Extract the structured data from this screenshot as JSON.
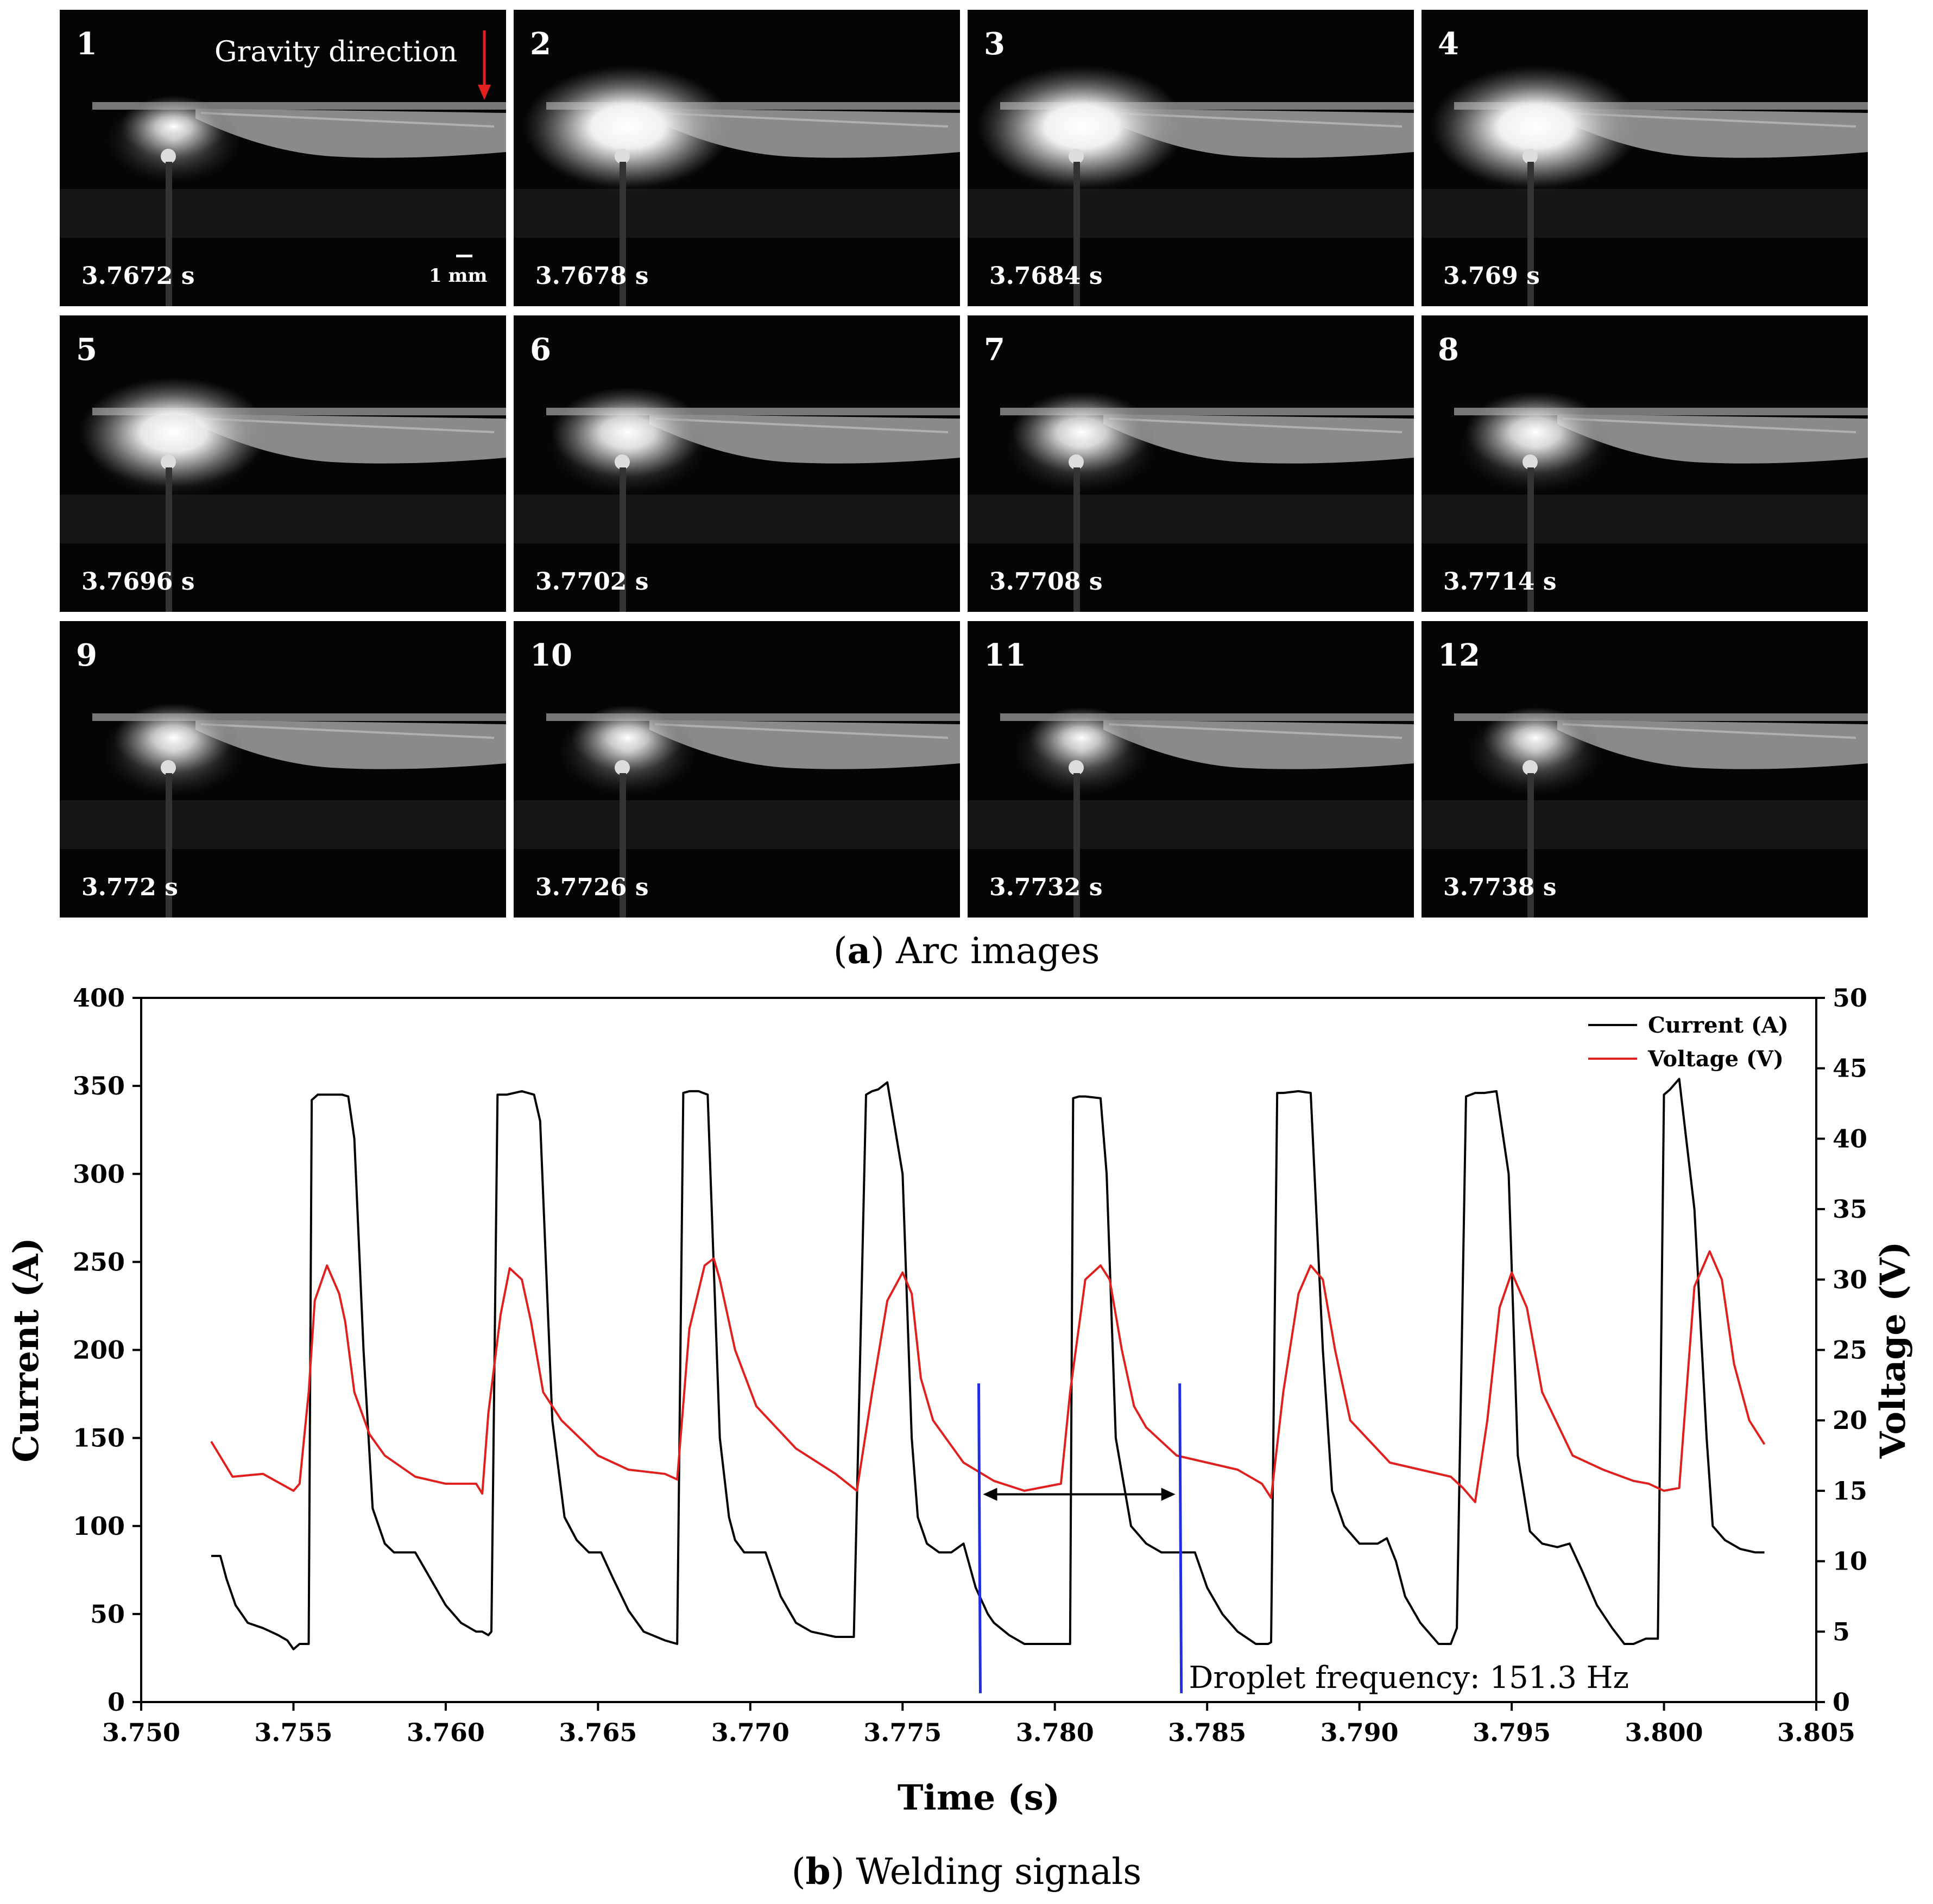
{
  "panel_a": {
    "caption_label": "a",
    "caption_text": "Arc images",
    "gravity_label": "Gravity direction",
    "scale_label": "1 mm",
    "arrow_color": "#e0201e",
    "frames": [
      {
        "num": "1",
        "time": "3.7672 s",
        "glow": 0.25
      },
      {
        "num": "2",
        "time": "3.7678 s",
        "glow": 1.0
      },
      {
        "num": "3",
        "time": "3.7684 s",
        "glow": 1.0
      },
      {
        "num": "4",
        "time": "3.769 s",
        "glow": 1.0
      },
      {
        "num": "5",
        "time": "3.7696 s",
        "glow": 0.85
      },
      {
        "num": "6",
        "time": "3.7702 s",
        "glow": 0.6
      },
      {
        "num": "7",
        "time": "3.7708 s",
        "glow": 0.5
      },
      {
        "num": "8",
        "time": "3.7714 s",
        "glow": 0.5
      },
      {
        "num": "9",
        "time": "3.772 s",
        "glow": 0.35
      },
      {
        "num": "10",
        "time": "3.7726 s",
        "glow": 0.3
      },
      {
        "num": "11",
        "time": "3.7732 s",
        "glow": 0.25
      },
      {
        "num": "12",
        "time": "3.7738 s",
        "glow": 0.25
      }
    ]
  },
  "panel_b": {
    "caption_label": "b",
    "caption_text": "Welding signals"
  },
  "chart_data": {
    "type": "line",
    "xlabel": "Time (s)",
    "ylabel": "Current (A)",
    "y2label": "Voltage (V)",
    "xlim": [
      3.75,
      3.805
    ],
    "ylim": [
      0,
      400
    ],
    "y2lim": [
      0,
      50
    ],
    "xticks": [
      "3.750",
      "3.755",
      "3.760",
      "3.765",
      "3.770",
      "3.775",
      "3.780",
      "3.785",
      "3.790",
      "3.795",
      "3.800",
      "3.805"
    ],
    "xtick_values": [
      3.75,
      3.755,
      3.76,
      3.765,
      3.77,
      3.775,
      3.78,
      3.785,
      3.79,
      3.795,
      3.8,
      3.805
    ],
    "yticks": [
      0,
      50,
      100,
      150,
      200,
      250,
      300,
      350,
      400
    ],
    "y2ticks": [
      0,
      5,
      10,
      15,
      20,
      25,
      30,
      35,
      40,
      45,
      50
    ],
    "annotation": "Droplet frequency: 151.3 Hz",
    "markers": [
      3.7775,
      3.7841
    ],
    "legend_position": "top-right",
    "series": [
      {
        "name": "Current (A)",
        "axis": "left",
        "color": "#000000",
        "x": [
          3.7523,
          3.7526,
          3.7528,
          3.7531,
          3.7535,
          3.754,
          3.7545,
          3.7548,
          3.755,
          3.7552,
          3.7555,
          3.7556,
          3.7558,
          3.756,
          3.7563,
          3.7566,
          3.7568,
          3.757,
          3.7573,
          3.7576,
          3.758,
          3.7583,
          3.7586,
          3.759,
          3.7595,
          3.76,
          3.7605,
          3.761,
          3.7612,
          3.7614,
          3.7615,
          3.7617,
          3.762,
          3.7625,
          3.7629,
          3.7631,
          3.7635,
          3.7639,
          3.7643,
          3.7647,
          3.7651,
          3.7655,
          3.766,
          3.7665,
          3.7672,
          3.7676,
          3.7678,
          3.768,
          3.7683,
          3.7686,
          3.769,
          3.7693,
          3.7695,
          3.7698,
          3.7702,
          3.7705,
          3.771,
          3.7715,
          3.772,
          3.7728,
          3.7734,
          3.7738,
          3.774,
          3.7742,
          3.7745,
          3.775,
          3.7753,
          3.7755,
          3.7758,
          3.7762,
          3.7766,
          3.777,
          3.7774,
          3.7778,
          3.778,
          3.7785,
          3.779,
          3.78,
          3.7805,
          3.7806,
          3.7808,
          3.781,
          3.7815,
          3.7817,
          3.782,
          3.7825,
          3.783,
          3.7835,
          3.784,
          3.7846,
          3.785,
          3.7855,
          3.786,
          3.7866,
          3.787,
          3.7871,
          3.7873,
          3.7875,
          3.788,
          3.7884,
          3.7888,
          3.7891,
          3.7895,
          3.79,
          3.7906,
          3.7909,
          3.7912,
          3.7915,
          3.792,
          3.7926,
          3.793,
          3.7932,
          3.7935,
          3.7938,
          3.7941,
          3.7945,
          3.7949,
          3.7952,
          3.7956,
          3.796,
          3.7965,
          3.7969,
          3.7973,
          3.7978,
          3.7983,
          3.7987,
          3.799,
          3.7994,
          3.7998,
          3.8,
          3.8002,
          3.8005,
          3.801,
          3.8014,
          3.8016,
          3.802,
          3.8025,
          3.803,
          3.8033
        ],
        "values": [
          83,
          83,
          70,
          55,
          45,
          42,
          38,
          35,
          30,
          33,
          33,
          342,
          345,
          345,
          345,
          345,
          344,
          320,
          200,
          110,
          90,
          85,
          85,
          85,
          70,
          55,
          45,
          40,
          40,
          38,
          40,
          345,
          345,
          347,
          345,
          330,
          160,
          105,
          92,
          85,
          85,
          70,
          52,
          40,
          35,
          33,
          346,
          347,
          347,
          345,
          150,
          105,
          92,
          85,
          85,
          85,
          60,
          45,
          40,
          37,
          37,
          345,
          347,
          348,
          352,
          300,
          150,
          105,
          90,
          85,
          85,
          90,
          65,
          50,
          45,
          38,
          33,
          33,
          33,
          343,
          344,
          344,
          343,
          300,
          150,
          100,
          90,
          85,
          85,
          85,
          65,
          50,
          40,
          33,
          33,
          34,
          346,
          346,
          347,
          346,
          200,
          120,
          100,
          90,
          90,
          93,
          80,
          60,
          45,
          33,
          33,
          42,
          344,
          346,
          346,
          347,
          300,
          140,
          97,
          90,
          88,
          90,
          75,
          55,
          42,
          33,
          33,
          36,
          36,
          345,
          348,
          354,
          280,
          150,
          100,
          92,
          87,
          85,
          85
        ]
      },
      {
        "name": "Voltage (V)",
        "axis": "right",
        "color": "#e0201e",
        "x": [
          3.7523,
          3.753,
          3.754,
          3.755,
          3.7552,
          3.7555,
          3.7557,
          3.7561,
          3.7565,
          3.7567,
          3.757,
          3.7575,
          3.758,
          3.759,
          3.76,
          3.761,
          3.7612,
          3.7614,
          3.7618,
          3.7621,
          3.7625,
          3.7628,
          3.7632,
          3.7638,
          3.765,
          3.766,
          3.7672,
          3.7676,
          3.768,
          3.7685,
          3.7688,
          3.769,
          3.7695,
          3.7702,
          3.7715,
          3.7728,
          3.7735,
          3.774,
          3.7745,
          3.775,
          3.7753,
          3.7756,
          3.776,
          3.777,
          3.778,
          3.779,
          3.7802,
          3.7805,
          3.781,
          3.7815,
          3.7818,
          3.7822,
          3.7826,
          3.783,
          3.784,
          3.785,
          3.786,
          3.7868,
          3.7871,
          3.7875,
          3.788,
          3.7884,
          3.7888,
          3.7892,
          3.7897,
          3.791,
          3.792,
          3.793,
          3.7934,
          3.7938,
          3.7942,
          3.7946,
          3.795,
          3.7955,
          3.796,
          3.797,
          3.798,
          3.799,
          3.7995,
          3.8,
          3.8005,
          3.801,
          3.8015,
          3.8019,
          3.8023,
          3.8028,
          3.8033
        ],
        "values": [
          18.5,
          16.0,
          16.2,
          15.0,
          15.5,
          22.0,
          28.5,
          31.0,
          29.0,
          27.0,
          22.0,
          19.0,
          17.5,
          16.0,
          15.5,
          15.5,
          14.8,
          20.5,
          27.5,
          30.8,
          30.0,
          27.0,
          22.0,
          20.0,
          17.5,
          16.5,
          16.2,
          15.8,
          26.5,
          31.0,
          31.5,
          30.0,
          25.0,
          21.0,
          18.0,
          16.2,
          15.0,
          22.0,
          28.5,
          30.5,
          29.0,
          23.0,
          20.0,
          17.0,
          15.7,
          15.0,
          15.5,
          22.0,
          30.0,
          31.0,
          30.0,
          25.0,
          21.0,
          19.5,
          17.5,
          17.0,
          16.5,
          15.5,
          14.5,
          22.0,
          29.0,
          31.0,
          30.0,
          25.0,
          20.0,
          17.0,
          16.5,
          16.0,
          15.2,
          14.2,
          20.0,
          28.0,
          30.5,
          28.0,
          22.0,
          17.5,
          16.5,
          15.7,
          15.5,
          15.0,
          15.2,
          29.5,
          32.0,
          30.0,
          24.0,
          20.0,
          18.3
        ]
      }
    ]
  }
}
